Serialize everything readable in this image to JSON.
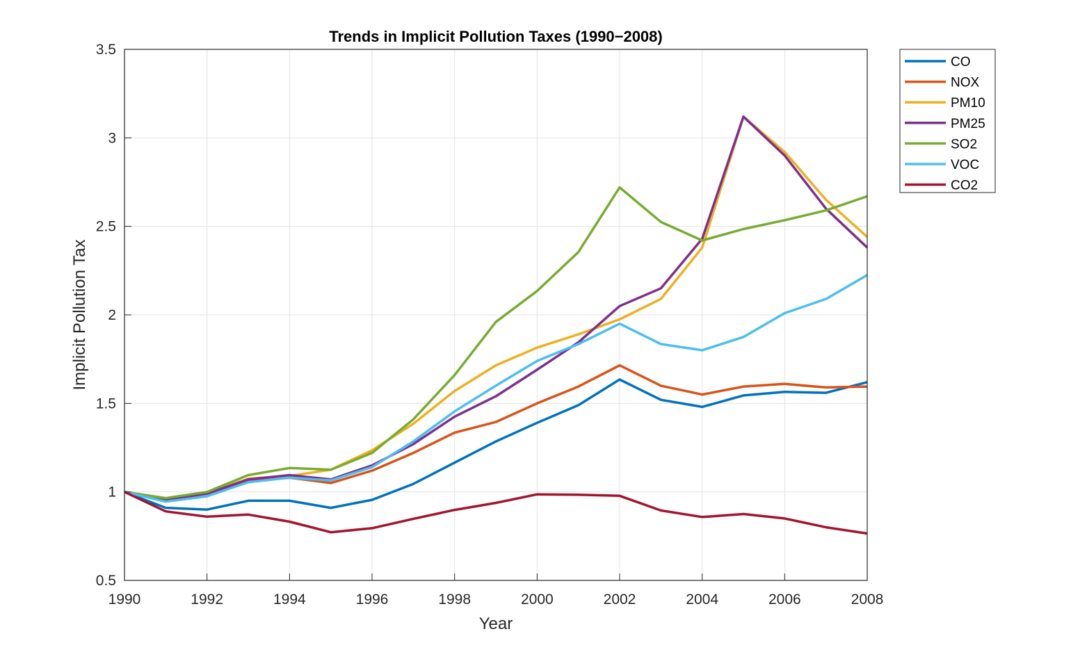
{
  "chart_data": {
    "type": "line",
    "title": "Trends in Implicit Pollution Taxes (1990−2008)",
    "xlabel": "Year",
    "ylabel": "Implicit Pollution Tax",
    "xlim": [
      1990,
      2008
    ],
    "ylim": [
      0.5,
      3.5
    ],
    "x_ticks": [
      "1990",
      "1992",
      "1994",
      "1996",
      "1998",
      "2000",
      "2002",
      "2004",
      "2006",
      "2008"
    ],
    "y_ticks": [
      "0.5",
      "1",
      "1.5",
      "2",
      "2.5",
      "3",
      "3.5"
    ],
    "grid": true,
    "legend_position": "outside-top-right",
    "x": [
      1990,
      1991,
      1992,
      1993,
      1994,
      1995,
      1996,
      1997,
      1998,
      1999,
      2000,
      2001,
      2002,
      2003,
      2004,
      2005,
      2006,
      2007,
      2008
    ],
    "series": [
      {
        "name": "CO",
        "color": "#0072BD",
        "values": [
          1.0,
          0.91,
          0.9,
          0.95,
          0.95,
          0.91,
          0.955,
          1.045,
          1.165,
          1.285,
          1.39,
          1.49,
          1.635,
          1.52,
          1.48,
          1.545,
          1.565,
          1.56,
          1.62
        ]
      },
      {
        "name": "NOX",
        "color": "#D95319",
        "values": [
          1.0,
          0.955,
          0.99,
          1.065,
          1.08,
          1.05,
          1.12,
          1.22,
          1.335,
          1.395,
          1.5,
          1.595,
          1.715,
          1.6,
          1.55,
          1.595,
          1.61,
          1.59,
          1.595
        ]
      },
      {
        "name": "PM10",
        "color": "#EDB120",
        "values": [
          1.0,
          0.96,
          0.995,
          1.075,
          1.09,
          1.125,
          1.235,
          1.385,
          1.57,
          1.715,
          1.815,
          1.89,
          1.975,
          2.09,
          2.38,
          3.12,
          2.92,
          2.65,
          2.44
        ]
      },
      {
        "name": "PM25",
        "color": "#7E2F8E",
        "values": [
          1.0,
          0.955,
          0.99,
          1.07,
          1.095,
          1.07,
          1.15,
          1.27,
          1.425,
          1.54,
          1.69,
          1.845,
          2.05,
          2.15,
          2.43,
          3.12,
          2.9,
          2.6,
          2.38
        ]
      },
      {
        "name": "SO2",
        "color": "#77AC30",
        "values": [
          1.0,
          0.965,
          1.0,
          1.095,
          1.135,
          1.125,
          1.22,
          1.41,
          1.66,
          1.96,
          2.135,
          2.355,
          2.72,
          2.525,
          2.42,
          2.485,
          2.535,
          2.59,
          2.67
        ]
      },
      {
        "name": "VOC",
        "color": "#4DBEEE",
        "values": [
          1.0,
          0.945,
          0.975,
          1.055,
          1.08,
          1.065,
          1.14,
          1.285,
          1.455,
          1.6,
          1.74,
          1.835,
          1.95,
          1.835,
          1.8,
          1.875,
          2.01,
          2.09,
          2.225
        ]
      },
      {
        "name": "CO2",
        "color": "#A2142F",
        "values": [
          1.0,
          0.89,
          0.86,
          0.872,
          0.832,
          0.772,
          0.795,
          0.848,
          0.898,
          0.938,
          0.986,
          0.984,
          0.978,
          0.895,
          0.858,
          0.875,
          0.85,
          0.8,
          0.765
        ]
      }
    ]
  }
}
